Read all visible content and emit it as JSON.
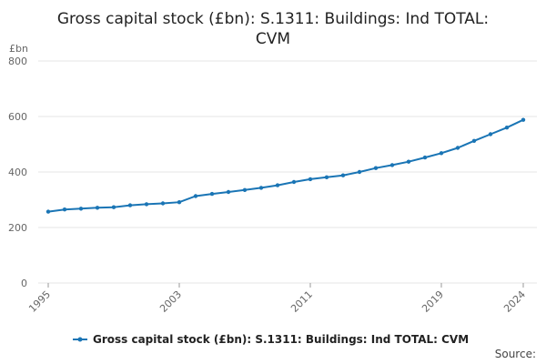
{
  "title": {
    "line1": "Gross capital stock (£bn): S.1311: Buildings: Ind TOTAL:",
    "line2": "CVM"
  },
  "source_label": "Source:",
  "colors": {
    "series": "#1a75b5",
    "grid": "#e6e6e6",
    "axis_text": "#666666"
  },
  "chart_data": {
    "type": "line",
    "title": "Gross capital stock (£bn): S.1311: Buildings: Ind TOTAL: CVM",
    "ylabel": "£bn",
    "xlabel": "",
    "ylim": [
      0,
      800
    ],
    "xlim": [
      1995,
      2024
    ],
    "yticks": [
      0,
      200,
      400,
      600,
      800
    ],
    "xticks": [
      "1995",
      "2003",
      "2011",
      "2019",
      "2024"
    ],
    "grid": true,
    "legend_position": "bottom",
    "x": [
      1995,
      1996,
      1997,
      1998,
      1999,
      2000,
      2001,
      2002,
      2003,
      2004,
      2005,
      2006,
      2007,
      2008,
      2009,
      2010,
      2011,
      2012,
      2013,
      2014,
      2015,
      2016,
      2017,
      2018,
      2019,
      2020,
      2021,
      2022,
      2023,
      2024
    ],
    "series": [
      {
        "name": "Gross capital stock (£bn): S.1311: Buildings: Ind TOTAL: CVM",
        "values": [
          257,
          265,
          268,
          271,
          273,
          280,
          284,
          287,
          291,
          313,
          321,
          328,
          335,
          343,
          352,
          364,
          374,
          381,
          388,
          400,
          414,
          425,
          437,
          452,
          468,
          487,
          512,
          536,
          560,
          588
        ]
      }
    ]
  }
}
